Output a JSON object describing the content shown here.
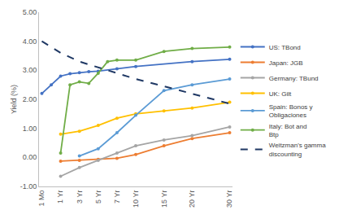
{
  "chart_data": {
    "type": "line",
    "y_label": "Yield (%)",
    "categories": [
      "1 Mo",
      null,
      "1 Yr",
      null,
      "3 Yr",
      null,
      "5 Yr",
      null,
      "7 Yr",
      null,
      "10 Yr",
      null,
      null,
      "15 Yr",
      null,
      null,
      "20 Yr",
      null,
      null,
      null,
      "30 Yr"
    ],
    "series": [
      {
        "name": "US: TBond",
        "color": "#4472C4",
        "marker": "circle",
        "line_style": "solid",
        "values": [
          2.2,
          2.5,
          2.8,
          2.88,
          2.92,
          2.95,
          2.97,
          null,
          3.05,
          null,
          3.13,
          null,
          null,
          null,
          null,
          null,
          3.3,
          null,
          null,
          null,
          3.38
        ]
      },
      {
        "name": "Japan: JGB",
        "color": "#ED7D31",
        "marker": "circle",
        "line_style": "solid",
        "values": [
          null,
          null,
          -0.13,
          null,
          -0.1,
          null,
          -0.07,
          null,
          -0.03,
          null,
          0.1,
          null,
          null,
          0.4,
          null,
          null,
          0.65,
          null,
          null,
          null,
          0.85
        ]
      },
      {
        "name": "Germany: TBund",
        "color": "#A5A5A5",
        "marker": "circle",
        "line_style": "solid",
        "values": [
          null,
          null,
          -0.65,
          null,
          -0.35,
          null,
          -0.1,
          null,
          0.15,
          null,
          0.4,
          null,
          null,
          0.6,
          null,
          null,
          0.75,
          null,
          null,
          null,
          1.05
        ]
      },
      {
        "name": "UK: Gilt",
        "color": "#FFC000",
        "marker": "circle",
        "line_style": "solid",
        "values": [
          null,
          null,
          0.8,
          null,
          0.9,
          null,
          1.1,
          null,
          1.35,
          null,
          1.5,
          null,
          null,
          1.6,
          null,
          null,
          1.7,
          null,
          null,
          null,
          1.9
        ]
      },
      {
        "name": "Spain: Bonos y Obligaciones",
        "color": "#5B9BD5",
        "marker": "circle",
        "line_style": "solid",
        "values": [
          null,
          null,
          null,
          null,
          0.05,
          null,
          0.3,
          null,
          0.85,
          null,
          1.45,
          null,
          null,
          2.3,
          null,
          null,
          2.5,
          null,
          null,
          null,
          2.7
        ]
      },
      {
        "name": "Italy: Bot and Btp",
        "color": "#70AD47",
        "marker": "circle",
        "line_style": "solid",
        "values": [
          null,
          null,
          0.15,
          2.5,
          2.6,
          2.55,
          2.9,
          3.3,
          3.35,
          null,
          3.35,
          null,
          null,
          3.65,
          null,
          null,
          3.75,
          null,
          null,
          null,
          3.8
        ]
      },
      {
        "name": "Weitzman's gamma discounting",
        "color": "#1F3864",
        "marker": "none",
        "line_style": "dash",
        "values": [
          4.0,
          null,
          3.6,
          null,
          3.3,
          null,
          3.1,
          null,
          2.9,
          null,
          2.7,
          null,
          null,
          2.45,
          null,
          null,
          2.2,
          null,
          null,
          null,
          1.85
        ]
      }
    ],
    "ylim": [
      -1,
      5
    ],
    "yticks": [
      {
        "value": -1,
        "label": "-1.00"
      },
      {
        "value": 0,
        "label": "0.00"
      },
      {
        "value": 1,
        "label": "1.00"
      },
      {
        "value": 2,
        "label": "2.00"
      },
      {
        "value": 3,
        "label": "3.00"
      },
      {
        "value": 4,
        "label": "4.00"
      },
      {
        "value": 5,
        "label": "5.00"
      }
    ],
    "grid": false,
    "legend": "right"
  }
}
